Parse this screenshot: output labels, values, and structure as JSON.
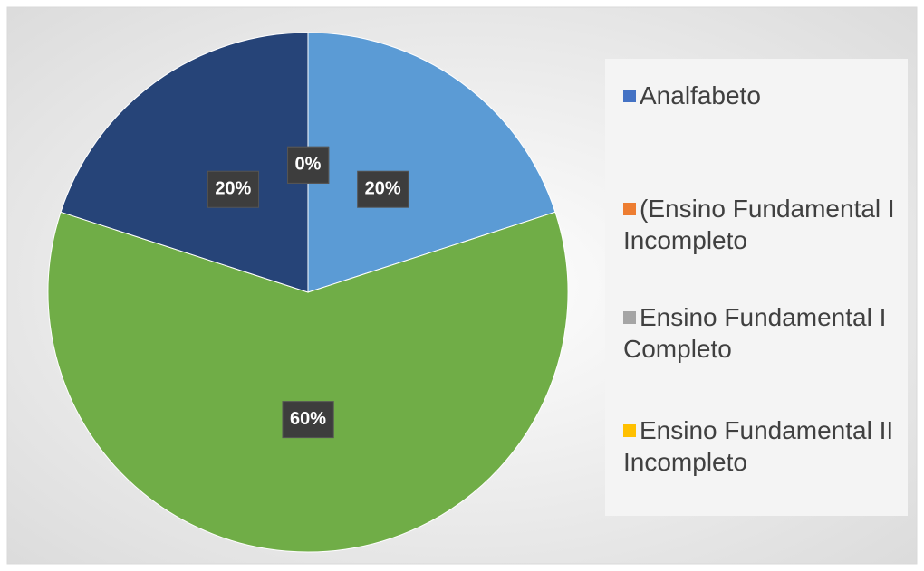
{
  "chart_data": {
    "type": "pie",
    "categories": [
      "Analfabeto",
      "(Ensino Fundamental I Incompleto",
      "Ensino Fundamental I Completo",
      "Ensino Fundamental II Incompleto",
      null,
      null,
      null
    ],
    "values": [
      0,
      0,
      0,
      0,
      20,
      60,
      20
    ],
    "value_labels": [
      "0%",
      "0%",
      "0%",
      "0%",
      "20%",
      "60%",
      "20%"
    ],
    "colors": [
      "#4472c4",
      "#ed7d31",
      "#a5a5a5",
      "#ffc000",
      "#5b9bd5",
      "#70ad47",
      "#264478"
    ],
    "legend": "right"
  }
}
